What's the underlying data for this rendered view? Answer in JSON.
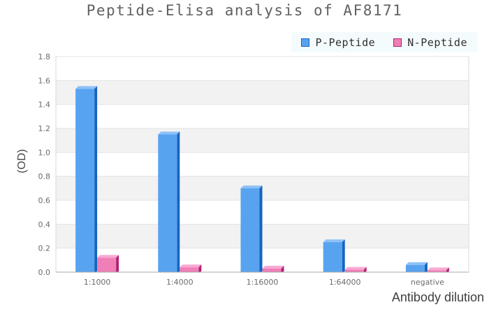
{
  "title": "Peptide-Elisa analysis of AF8171",
  "colors": {
    "p_peptide_front": "#58a3f0",
    "p_peptide_top": "#8ec1f7",
    "p_peptide_side": "#1565c0",
    "n_peptide_front": "#f07eb7",
    "n_peptide_top": "#f8a9d2",
    "n_peptide_side": "#b02372",
    "band_gray": "#f2f2f2",
    "gridline": "#e3e3e3",
    "plot_border": "#d9d9d9",
    "axis_line": "#a9a9a9",
    "tick_text": "#6b6b6b",
    "legend_bg": "#f4fbfd"
  },
  "chart_data": {
    "type": "bar",
    "title": "Peptide-Elisa analysis of AF8171",
    "categories": [
      "1:1000",
      "1:4000",
      "1:16000",
      "1:64000",
      "negative"
    ],
    "series": [
      {
        "name": "P-Peptide",
        "values": [
          1.53,
          1.15,
          0.7,
          0.25,
          0.06
        ],
        "color": "#58a3f0",
        "color_top": "#8ec1f7",
        "color_side": "#1565c0"
      },
      {
        "name": "N-Peptide",
        "values": [
          0.12,
          0.04,
          0.03,
          0.02,
          0.015
        ],
        "color": "#f07eb7",
        "color_top": "#f8a9d2",
        "color_side": "#b02372"
      }
    ],
    "xlabel": "Antibody dilution",
    "ylabel": "(OD)",
    "ylim": [
      0,
      1.8
    ],
    "ytick_step": 0.2,
    "y_ticks": [
      "0.0",
      "0.2",
      "0.4",
      "0.6",
      "0.8",
      "1.0",
      "1.2",
      "1.4",
      "1.6",
      "1.8"
    ],
    "grid": true,
    "banded_background": true,
    "legend_position": "top-right",
    "bar_style": "3d-extruded"
  }
}
